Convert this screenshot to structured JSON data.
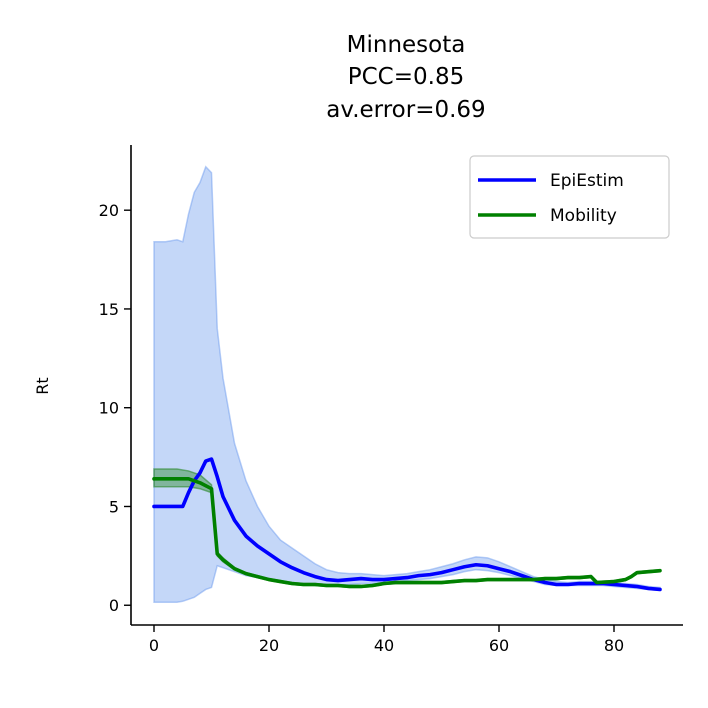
{
  "chart_data": {
    "type": "line",
    "title": [
      "Minnesota",
      "PCC=0.85",
      "av.error=0.69"
    ],
    "xlabel": "",
    "ylabel": "Rt",
    "xlim": [
      -4,
      92
    ],
    "ylim": [
      -1,
      23.3
    ],
    "xticks": [
      0,
      20,
      40,
      60,
      80
    ],
    "yticks": [
      0,
      5,
      10,
      15,
      20
    ],
    "grid": false,
    "legend_position": "top-right",
    "series": [
      {
        "name": "EpiEstim",
        "color": "#0000ff",
        "band_color": "#6495ed",
        "x": [
          0,
          2,
          4,
          5,
          6,
          7,
          8,
          9,
          10,
          11,
          12,
          14,
          16,
          18,
          20,
          22,
          24,
          26,
          28,
          30,
          32,
          34,
          36,
          38,
          40,
          42,
          44,
          46,
          48,
          50,
          52,
          54,
          56,
          58,
          60,
          62,
          64,
          66,
          68,
          70,
          72,
          74,
          76,
          78,
          80,
          82,
          84,
          86,
          88
        ],
        "y": [
          5.0,
          5.0,
          5.0,
          5.0,
          5.7,
          6.3,
          6.7,
          7.3,
          7.4,
          6.5,
          5.5,
          4.3,
          3.5,
          3.0,
          2.6,
          2.2,
          1.9,
          1.65,
          1.45,
          1.3,
          1.25,
          1.3,
          1.35,
          1.3,
          1.3,
          1.35,
          1.4,
          1.5,
          1.55,
          1.65,
          1.8,
          1.95,
          2.05,
          2.0,
          1.85,
          1.7,
          1.5,
          1.3,
          1.15,
          1.05,
          1.05,
          1.1,
          1.1,
          1.1,
          1.05,
          1.0,
          0.95,
          0.85,
          0.8
        ],
        "lower": [
          0.15,
          0.15,
          0.15,
          0.2,
          0.3,
          0.4,
          0.6,
          0.8,
          0.9,
          2.0,
          1.9,
          1.7,
          1.5,
          1.4,
          1.3,
          1.2,
          1.1,
          1.05,
          1.0,
          1.0,
          1.0,
          1.05,
          1.1,
          1.1,
          1.15,
          1.2,
          1.25,
          1.3,
          1.35,
          1.45,
          1.55,
          1.7,
          1.8,
          1.75,
          1.65,
          1.5,
          1.35,
          1.2,
          1.05,
          1.0,
          1.0,
          1.0,
          1.0,
          1.0,
          0.95,
          0.9,
          0.85,
          0.8,
          0.75
        ],
        "upper": [
          18.4,
          18.4,
          18.5,
          18.4,
          19.8,
          20.9,
          21.4,
          22.2,
          21.9,
          14.0,
          11.5,
          8.2,
          6.3,
          5.0,
          4.0,
          3.3,
          2.9,
          2.5,
          2.1,
          1.8,
          1.65,
          1.6,
          1.6,
          1.55,
          1.5,
          1.55,
          1.6,
          1.7,
          1.8,
          1.95,
          2.1,
          2.3,
          2.45,
          2.4,
          2.2,
          1.95,
          1.7,
          1.45,
          1.3,
          1.2,
          1.15,
          1.2,
          1.2,
          1.2,
          1.15,
          1.1,
          1.05,
          0.95,
          0.9
        ]
      },
      {
        "name": "Mobility",
        "color": "#008000",
        "band_color": "#2e8b2e",
        "x": [
          0,
          2,
          4,
          6,
          8,
          10,
          11,
          12,
          14,
          16,
          18,
          20,
          22,
          24,
          26,
          28,
          30,
          32,
          34,
          36,
          38,
          40,
          42,
          44,
          46,
          48,
          50,
          52,
          54,
          56,
          58,
          60,
          62,
          64,
          66,
          68,
          70,
          72,
          74,
          76,
          77,
          80,
          82,
          83,
          84,
          86,
          88
        ],
        "y": [
          6.4,
          6.4,
          6.4,
          6.4,
          6.2,
          5.9,
          2.6,
          2.3,
          1.85,
          1.6,
          1.45,
          1.3,
          1.2,
          1.1,
          1.05,
          1.05,
          1.0,
          1.0,
          0.95,
          0.95,
          1.0,
          1.1,
          1.15,
          1.15,
          1.15,
          1.15,
          1.15,
          1.2,
          1.25,
          1.25,
          1.3,
          1.3,
          1.3,
          1.3,
          1.3,
          1.35,
          1.35,
          1.4,
          1.4,
          1.45,
          1.15,
          1.2,
          1.3,
          1.45,
          1.65,
          1.7,
          1.75
        ],
        "lower": [
          6.0,
          6.0,
          6.0,
          6.0,
          5.9,
          5.7,
          2.5,
          2.2,
          1.8,
          1.55,
          1.4,
          1.25,
          1.15,
          1.05,
          1.0,
          1.0,
          0.95,
          0.95,
          0.9,
          0.9,
          0.95,
          1.05,
          1.1,
          1.1,
          1.1,
          1.1,
          1.1,
          1.15,
          1.2,
          1.2,
          1.25,
          1.25,
          1.25,
          1.25,
          1.25,
          1.3,
          1.3,
          1.35,
          1.35,
          1.4,
          1.1,
          1.15,
          1.25,
          1.4,
          1.6,
          1.65,
          1.7
        ],
        "upper": [
          6.9,
          6.9,
          6.9,
          6.8,
          6.6,
          6.1,
          2.7,
          2.4,
          1.9,
          1.65,
          1.5,
          1.35,
          1.25,
          1.15,
          1.1,
          1.1,
          1.05,
          1.05,
          1.0,
          1.0,
          1.05,
          1.15,
          1.2,
          1.2,
          1.2,
          1.2,
          1.2,
          1.25,
          1.3,
          1.3,
          1.35,
          1.35,
          1.35,
          1.35,
          1.35,
          1.4,
          1.4,
          1.45,
          1.45,
          1.5,
          1.2,
          1.25,
          1.35,
          1.5,
          1.7,
          1.75,
          1.8
        ]
      }
    ]
  }
}
